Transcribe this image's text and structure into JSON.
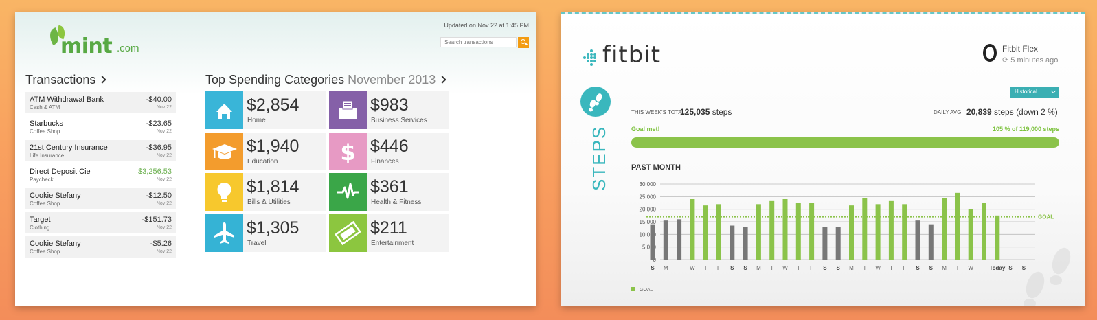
{
  "mint": {
    "logo_text": "mint",
    "logo_suffix": ".com",
    "updated": "Updated on Nov 22 at 1:45 PM",
    "search": {
      "placeholder": "Search transactions"
    },
    "transactions_title": "Transactions",
    "transactions": [
      {
        "name": "ATM Withdrawal Bank",
        "category": "Cash & ATM",
        "amount": "-$40.00",
        "date": "Nov 22",
        "positive": false
      },
      {
        "name": "Starbucks",
        "category": "Coffee Shop",
        "amount": "-$23.65",
        "date": "Nov 22",
        "positive": false
      },
      {
        "name": "21st Century Insurance",
        "category": "Life Insurance",
        "amount": "-$36.95",
        "date": "Nov 22",
        "positive": false
      },
      {
        "name": "Direct Deposit Cie",
        "category": "Paycheck",
        "amount": "$3,256.53",
        "date": "Nov 22",
        "positive": true
      },
      {
        "name": "Cookie Stefany",
        "category": "Coffee Shop",
        "amount": "-$12.50",
        "date": "Nov 22",
        "positive": false
      },
      {
        "name": "Target",
        "category": "Clothing",
        "amount": "-$151.73",
        "date": "Nov 22",
        "positive": false
      },
      {
        "name": "Cookie Stefany",
        "category": "Coffee Shop",
        "amount": "-$5.26",
        "date": "Nov 22",
        "positive": false
      }
    ],
    "spending_title": "Top Spending Categories",
    "spending_month": "November 2013",
    "categories": [
      {
        "amount": "$2,854",
        "label": "Home",
        "color": "#39b5d8",
        "icon": "home-icon"
      },
      {
        "amount": "$983",
        "label": "Business Services",
        "color": "#8560a8",
        "icon": "fax-icon"
      },
      {
        "amount": "$1,940",
        "label": "Education",
        "color": "#f39c2d",
        "icon": "graduation-cap-icon"
      },
      {
        "amount": "$446",
        "label": "Finances",
        "color": "#e79ac4",
        "icon": "dollar-icon"
      },
      {
        "amount": "$1,814",
        "label": "Bills & Utilities",
        "color": "#f7c82d",
        "icon": "lightbulb-icon"
      },
      {
        "amount": "$361",
        "label": "Health & Fitness",
        "color": "#3aa648",
        "icon": "heartbeat-icon"
      },
      {
        "amount": "$1,305",
        "label": "Travel",
        "color": "#35b3d5",
        "icon": "airplane-icon"
      },
      {
        "amount": "$211",
        "label": "Entertainment",
        "color": "#8cc63f",
        "icon": "ticket-icon"
      }
    ]
  },
  "fitbit": {
    "logo_text": "fitbit",
    "device_name": "Fitbit Flex",
    "device_time": "5 minutes ago",
    "view_select": "Historical",
    "section_label": "STEPS",
    "week_total_label": "THIS WEEK'S TOTAL",
    "week_total_value": "125,035",
    "week_total_unit": "steps",
    "daily_avg_label": "DAILY AVG.",
    "daily_avg_value": "20,839",
    "daily_avg_suffix": "steps (down 2 %)",
    "goal_met": "Goal met!",
    "goal_pct": "105 % of 119,000 steps",
    "goal_progress": 1.0,
    "past_month_label": "PAST MONTH",
    "legend_goal": "GOAL",
    "colors": {
      "accent": "#3ab7bd",
      "green": "#8bc34a",
      "gray": "#777777"
    }
  },
  "chart_data": {
    "type": "bar",
    "title": "PAST MONTH",
    "ylim": [
      0,
      30000
    ],
    "yticks": [
      "0",
      "5,000",
      "10,000",
      "15,000",
      "20,000",
      "25,000",
      "30,000"
    ],
    "goal": 17000,
    "goal_label": "GOAL",
    "categories": [
      "S",
      "M",
      "T",
      "W",
      "T",
      "F",
      "S",
      "S",
      "M",
      "T",
      "W",
      "T",
      "F",
      "S",
      "S",
      "M",
      "T",
      "W",
      "T",
      "F",
      "S",
      "S",
      "M",
      "T",
      "W",
      "T",
      "Today",
      "S",
      "S"
    ],
    "bold": [
      true,
      false,
      false,
      false,
      false,
      false,
      true,
      true,
      false,
      false,
      false,
      false,
      false,
      true,
      true,
      false,
      false,
      false,
      false,
      false,
      true,
      true,
      false,
      false,
      false,
      false,
      true,
      true,
      true
    ],
    "values": [
      14000,
      15500,
      16000,
      24000,
      21500,
      22000,
      13500,
      13000,
      22000,
      23500,
      24000,
      22500,
      22500,
      13000,
      13000,
      21500,
      24500,
      22000,
      23500,
      22000,
      15500,
      14000,
      24500,
      26500,
      20000,
      22500,
      17500,
      null,
      null
    ],
    "goal_met": [
      false,
      false,
      false,
      true,
      true,
      true,
      false,
      false,
      true,
      true,
      true,
      true,
      true,
      false,
      false,
      true,
      true,
      true,
      true,
      true,
      false,
      false,
      true,
      true,
      true,
      true,
      true,
      false,
      false
    ]
  }
}
